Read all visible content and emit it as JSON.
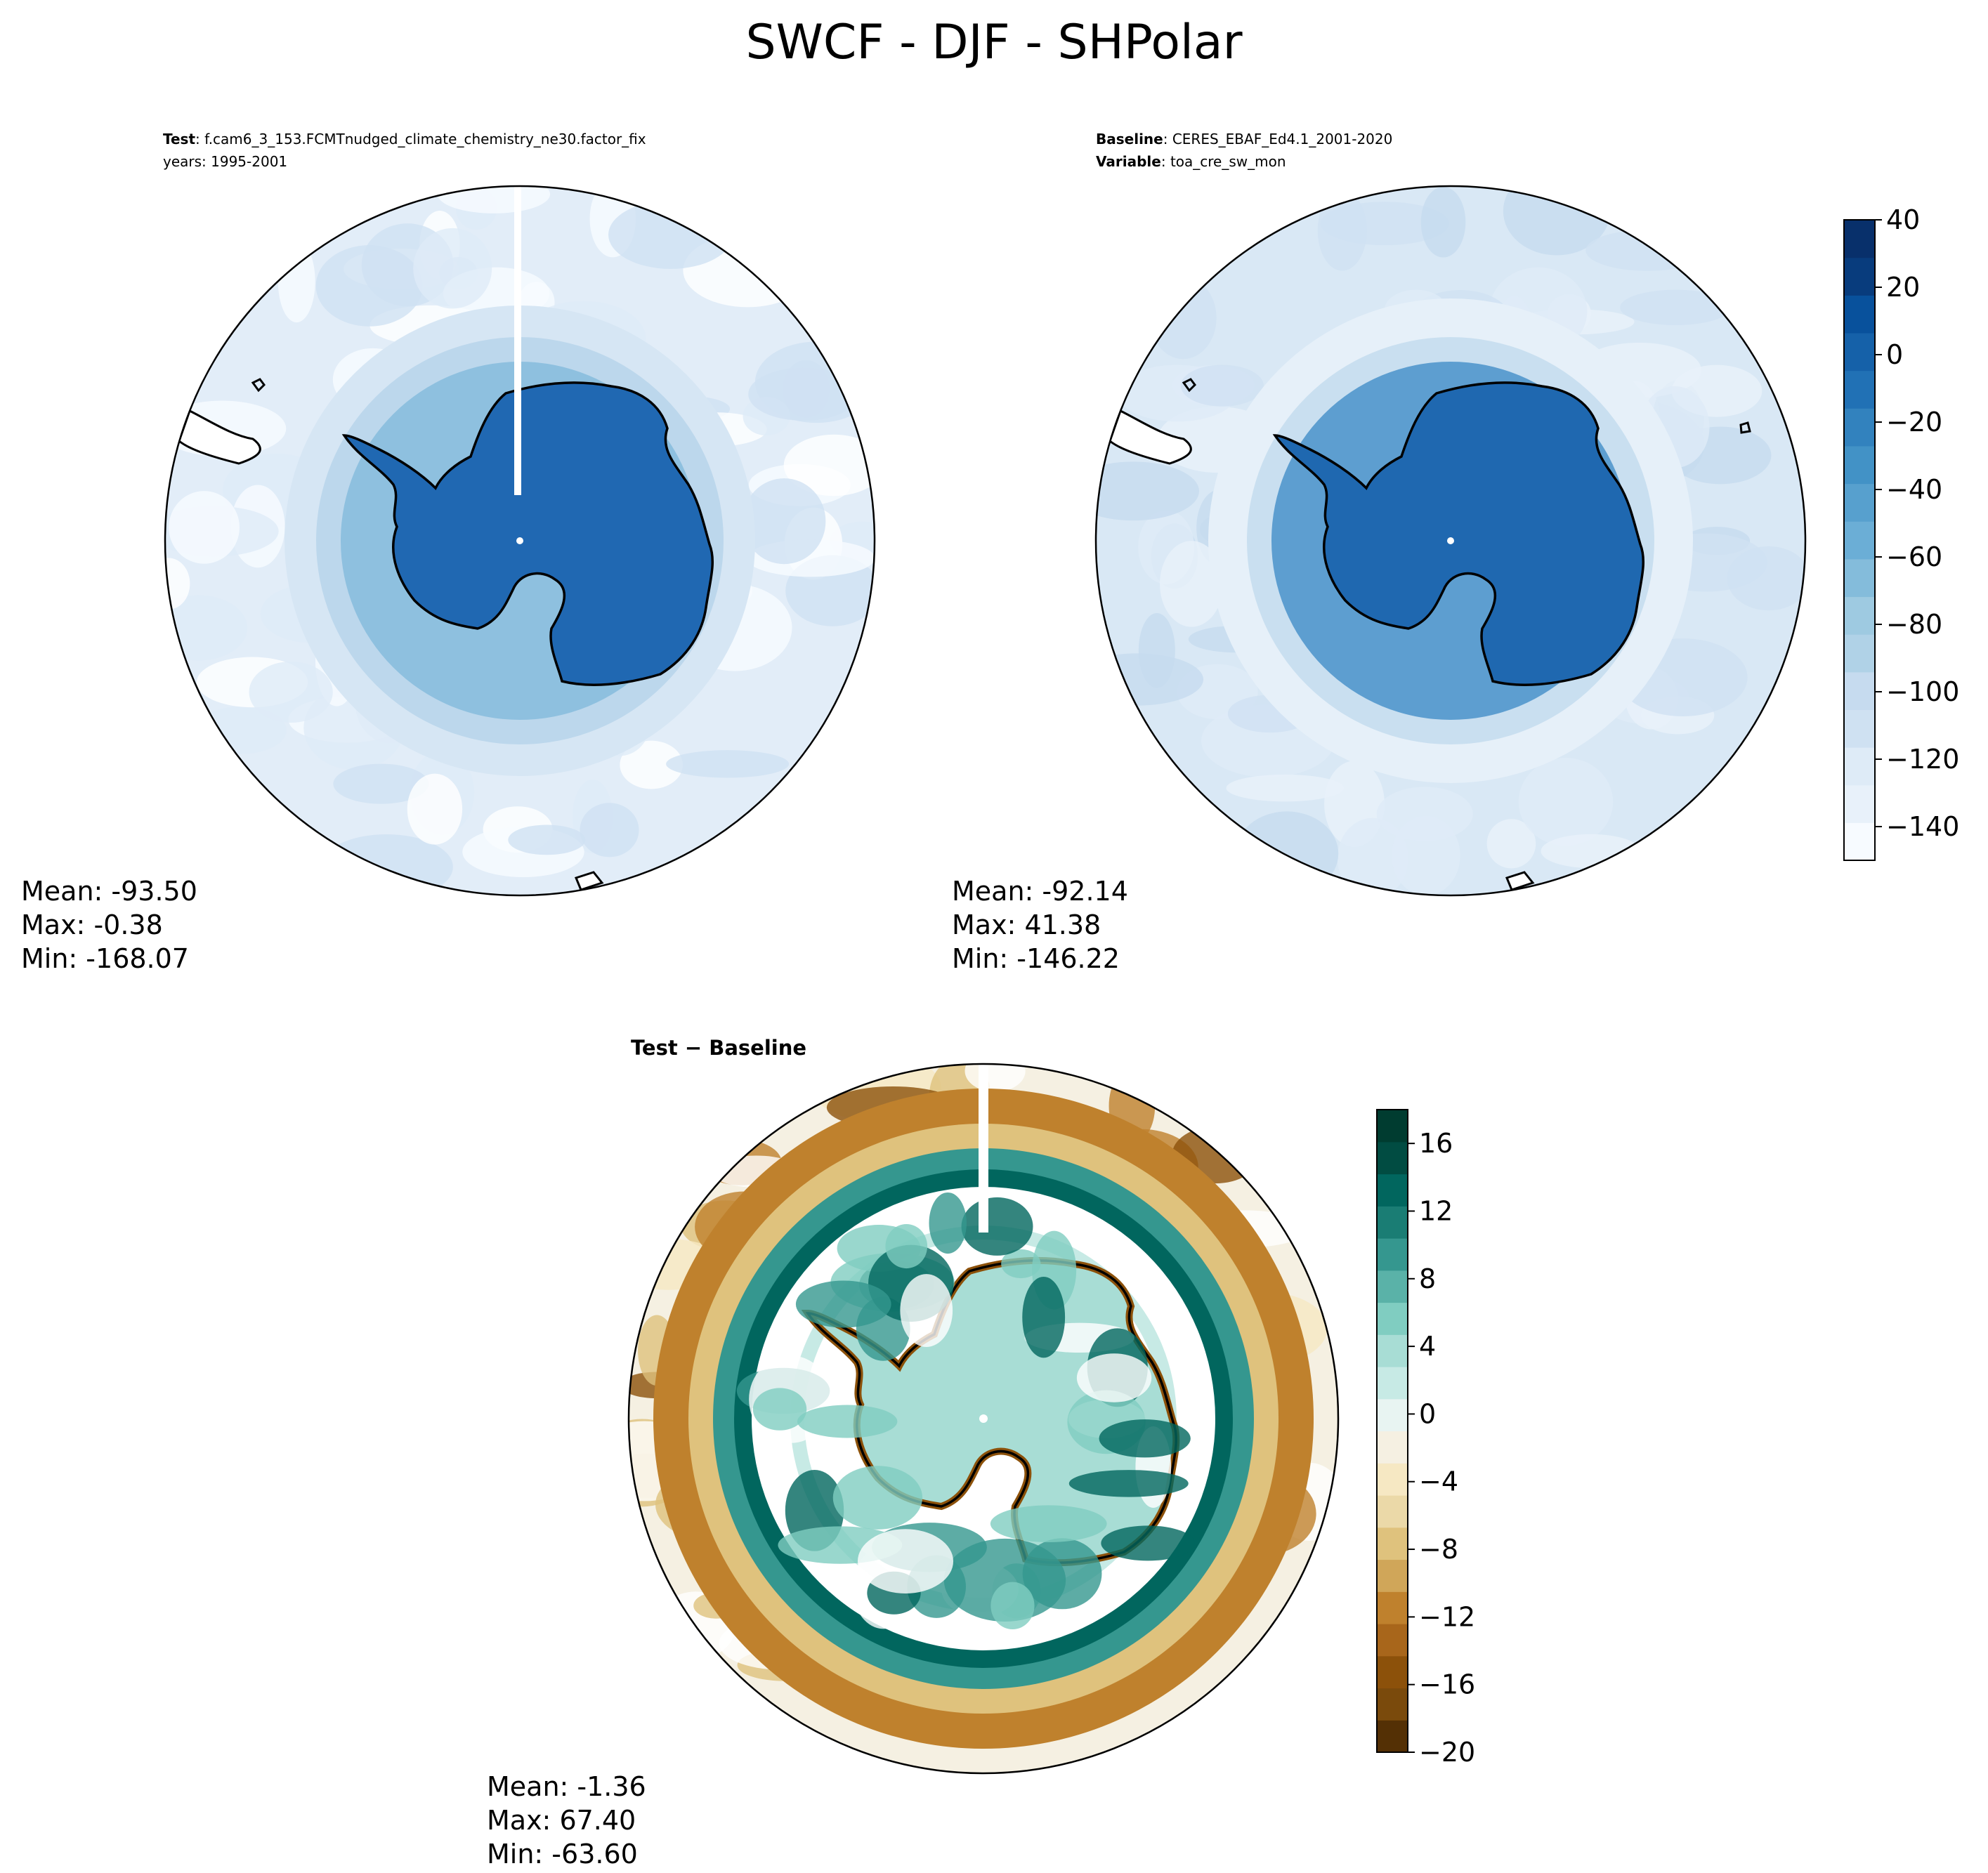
{
  "suptitle": "SWCF - DJF - SHPolar",
  "colors": {
    "blues": [
      "#f7fbff",
      "#e8f1fa",
      "#deebf7",
      "#cfe1f2",
      "#c6dbef",
      "#b0d2e7",
      "#9ecae1",
      "#84bcdb",
      "#6baed6",
      "#57a0ce",
      "#4292c6",
      "#3282be",
      "#2171b5",
      "#1561a9",
      "#08519c",
      "#083c7d",
      "#08306b"
    ],
    "brbg": [
      "#543005",
      "#7a4a0c",
      "#8c510a",
      "#a8661b",
      "#bf812d",
      "#d0a659",
      "#dfc27d",
      "#ebd9a8",
      "#f6e8c3",
      "#f5f0e2",
      "#e8f4f2",
      "#c7eae5",
      "#a8ddd5",
      "#80cdc1",
      "#5ab2a8",
      "#35978f",
      "#1a7d74",
      "#01665e",
      "#014c42",
      "#003c30"
    ]
  },
  "panels": {
    "test": {
      "title_lines": [
        {
          "bold": "Test",
          "rest": ": f.cam6_3_153.FCMTnudged_climate_chemistry_ne30.factor_fix"
        },
        {
          "bold": "",
          "rest": "years: 1995-2001"
        }
      ],
      "stats": {
        "mean": "Mean: -93.50",
        "max": "Max: -0.38",
        "min": "Min: -168.07"
      }
    },
    "baseline": {
      "title_lines": [
        {
          "bold": "Baseline",
          "rest": ": CERES_EBAF_Ed4.1_2001-2020"
        },
        {
          "bold": "Variable",
          "rest": ": toa_cre_sw_mon"
        }
      ],
      "stats": {
        "mean": "Mean: -92.14",
        "max": "Max: 41.38",
        "min": "Min: -146.22"
      }
    },
    "diff": {
      "title_lines": [
        {
          "bold": "Test − Baseline",
          "rest": ""
        }
      ],
      "stats": {
        "mean": "Mean: -1.36",
        "max": "Max: 67.40",
        "min": "Min: -63.60"
      }
    }
  },
  "chart_data": [
    {
      "type": "heatmap",
      "panel": "test",
      "projection": "South Polar Stereographic",
      "colorbar": {
        "ticks": [
          40,
          20,
          0,
          -20,
          -40,
          -60,
          -80,
          -100,
          -120,
          -140
        ],
        "range": [
          -150,
          40
        ]
      },
      "summary": {
        "mean": -93.5,
        "max": -0.38,
        "min": -168.07
      }
    },
    {
      "type": "heatmap",
      "panel": "baseline",
      "projection": "South Polar Stereographic",
      "colorbar": {
        "ticks": [
          40,
          20,
          0,
          -20,
          -40,
          -60,
          -80,
          -100,
          -120,
          -140
        ],
        "range": [
          -150,
          40
        ]
      },
      "summary": {
        "mean": -92.14,
        "max": 41.38,
        "min": -146.22
      }
    },
    {
      "type": "heatmap",
      "panel": "diff",
      "projection": "South Polar Stereographic",
      "colorbar": {
        "ticks": [
          16,
          12,
          8,
          4,
          0,
          -4,
          -8,
          -12,
          -16,
          -20
        ],
        "range": [
          -20,
          18
        ]
      },
      "summary": {
        "mean": -1.36,
        "max": 67.4,
        "min": -63.6
      }
    }
  ]
}
